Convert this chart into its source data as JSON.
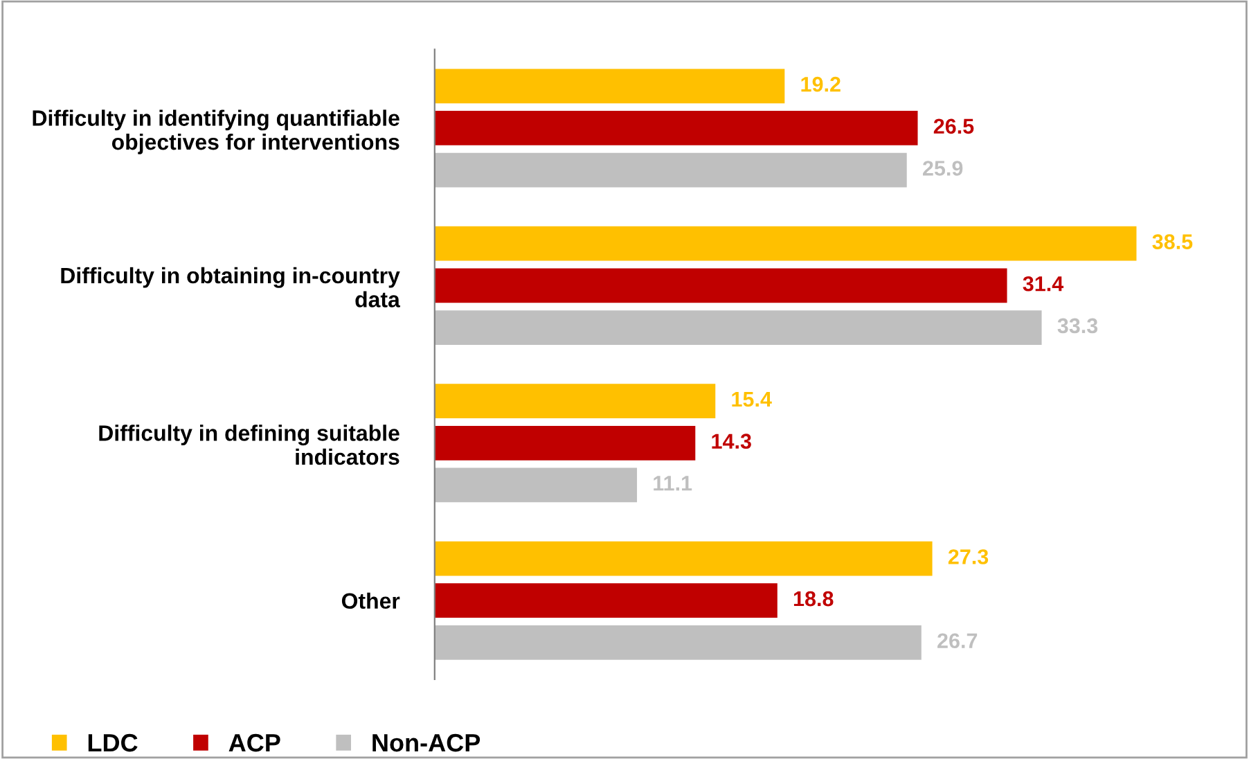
{
  "chart_data": {
    "type": "bar",
    "orientation": "horizontal",
    "data_labels": true,
    "legend": "bottom left",
    "grid": false,
    "categories": [
      "Difficulty in identifying quantifiable\nobjectives for interventions",
      "Difficulty in obtaining in-country\ndata",
      "Difficulty in defining suitable\nindicators",
      "Other"
    ],
    "series": [
      {
        "name": "LDC",
        "color": "#ffc000",
        "values": [
          19.2,
          38.5,
          15.4,
          27.3
        ]
      },
      {
        "name": "ACP",
        "color": "#c00000",
        "values": [
          26.5,
          31.4,
          14.3,
          18.8
        ]
      },
      {
        "name": "Non-ACP",
        "color": "#bfbfbf",
        "values": [
          25.9,
          33.3,
          11.1,
          26.7
        ]
      }
    ]
  }
}
